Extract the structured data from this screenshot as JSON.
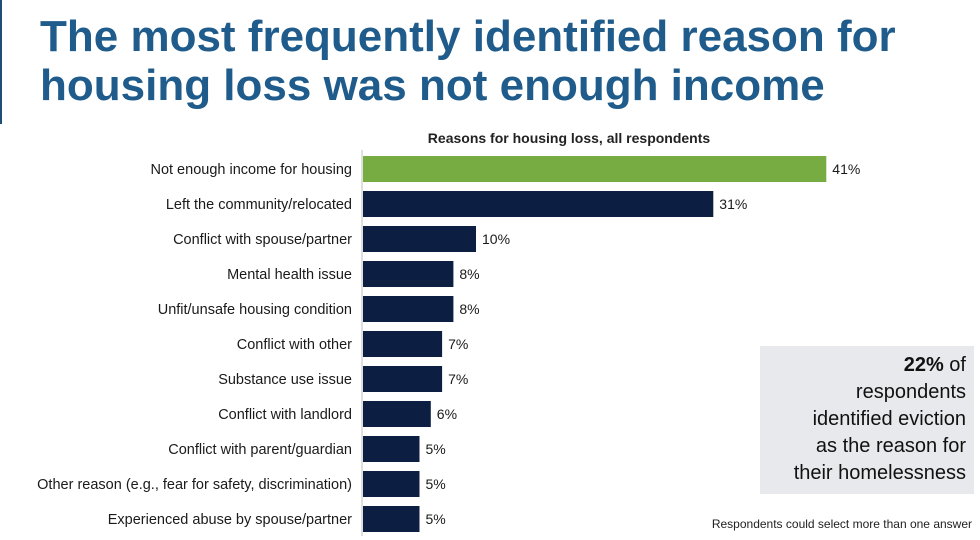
{
  "slide": {
    "title_line1": "The most frequently identified reason for",
    "title_line2": "housing loss was not enough income"
  },
  "chart_data": {
    "type": "bar",
    "orientation": "horizontal",
    "title": "Reasons for housing loss, all respondents",
    "unit": "%",
    "categories": [
      "Not enough income for housing",
      "Left the community/relocated",
      "Conflict with spouse/partner",
      "Mental health issue",
      "Unfit/unsafe housing condition",
      "Conflict with other",
      "Substance use issue",
      "Conflict with landlord",
      "Conflict with parent/guardian",
      "Other reason (e.g., fear for safety, discrimination)",
      "Experienced abuse by spouse/partner"
    ],
    "values": [
      41,
      31,
      10,
      8,
      8,
      7,
      7,
      6,
      5,
      5,
      5
    ],
    "highlight_index": 0,
    "colors": {
      "highlight": "#76ac42",
      "default": "#0c1f43"
    },
    "grid": false,
    "legend": "none"
  },
  "callout": {
    "stat": "22%",
    "stat_suffix": " of",
    "line2": "respondents",
    "line3": "identified eviction",
    "line4": "as the reason for",
    "line5": "their homelessness"
  },
  "footnote": "Respondents could select more than one answer"
}
